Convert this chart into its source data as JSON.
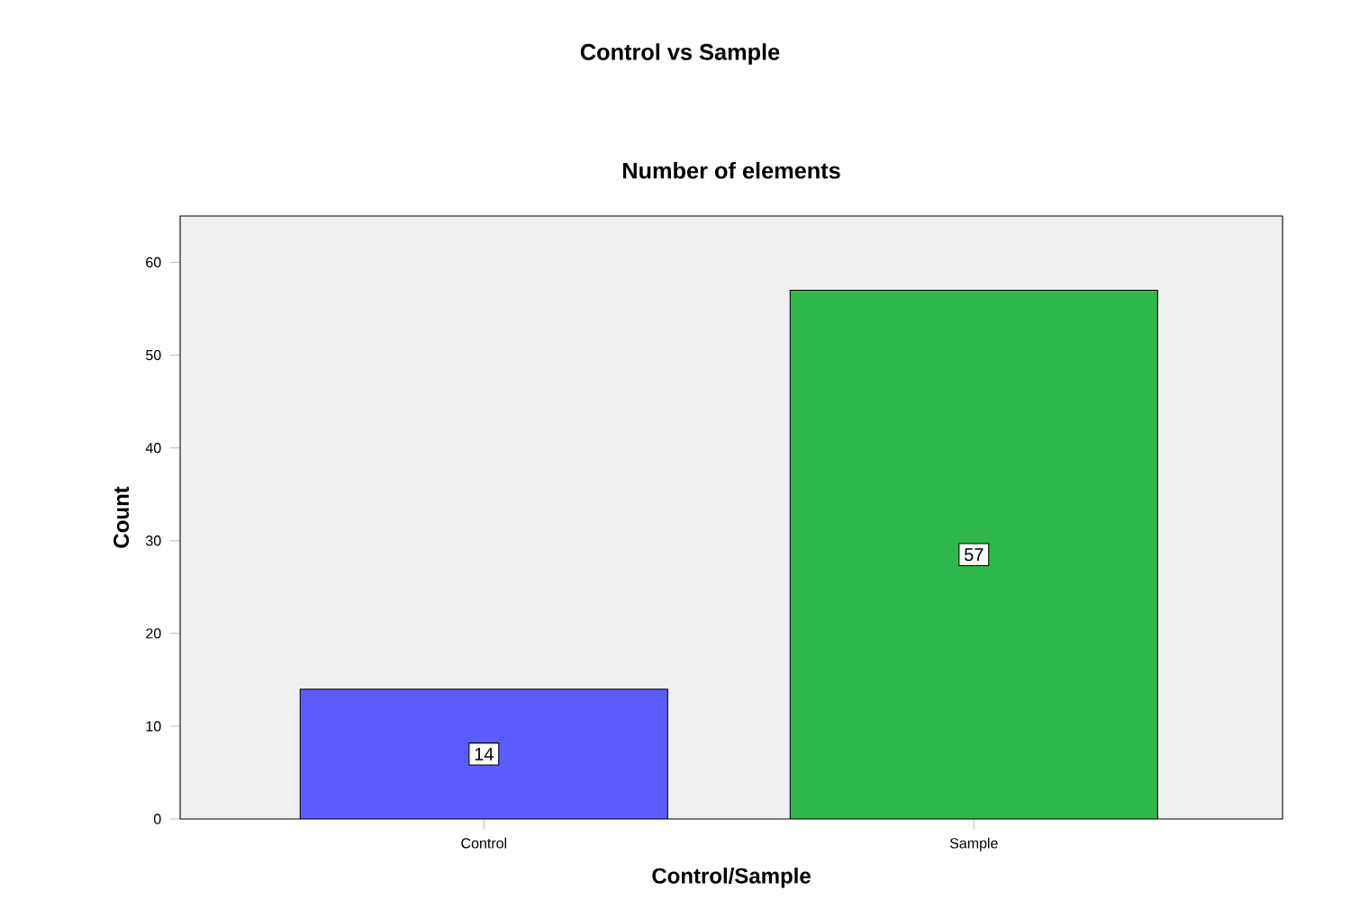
{
  "chart_data": {
    "type": "bar",
    "title": "Control vs Sample",
    "subtitle": "Number of elements",
    "xlabel": "Control/Sample",
    "ylabel": "Count",
    "categories": [
      "Control",
      "Sample"
    ],
    "values": [
      14,
      57
    ],
    "colors": [
      "#5b5bff",
      "#2eb84b"
    ],
    "ylim": [
      0,
      65
    ],
    "yticks": [
      0,
      10,
      20,
      30,
      40,
      50,
      60
    ],
    "data_labels": true
  }
}
